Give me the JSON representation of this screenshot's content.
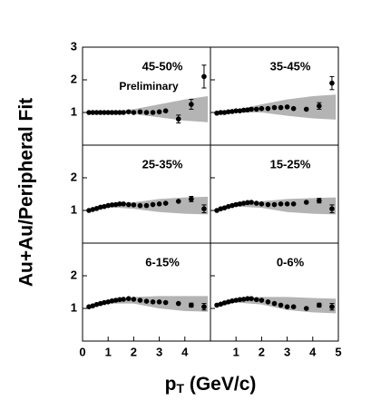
{
  "ylabel": "Au+Au/Peripheral Fit",
  "xlabel": {
    "main": "p",
    "sub": "T",
    "rest": " (GeV/c)"
  },
  "chart_data": [
    {
      "type": "scatter",
      "title": "45-50%",
      "annotation": "Preliminary",
      "xlim": [
        0,
        5
      ],
      "ylim": [
        0,
        3
      ],
      "yticks": [
        1,
        2,
        3
      ],
      "color": "#000000",
      "band_color": "#b4b4b4",
      "x": [
        0.25,
        0.4,
        0.55,
        0.7,
        0.85,
        1.0,
        1.15,
        1.3,
        1.45,
        1.6,
        1.8,
        2.0,
        2.25,
        2.5,
        2.75,
        3.0,
        3.25,
        3.75,
        4.25,
        4.75
      ],
      "values": [
        1.0,
        1.0,
        1.0,
        1.0,
        1.0,
        1.0,
        1.0,
        1.0,
        1.0,
        1.0,
        1.02,
        1.0,
        1.02,
        1.0,
        1.0,
        1.02,
        1.05,
        0.8,
        1.25,
        2.1
      ],
      "errors": [
        null,
        null,
        null,
        null,
        null,
        null,
        null,
        null,
        null,
        null,
        null,
        null,
        null,
        null,
        null,
        null,
        null,
        0.12,
        0.15,
        0.35
      ],
      "band_x": [
        0.2,
        1,
        2,
        3,
        4,
        4.9
      ],
      "band_lower": [
        0.98,
        0.98,
        0.95,
        0.85,
        0.75,
        0.7
      ],
      "band_upper": [
        1.02,
        1.02,
        1.1,
        1.25,
        1.4,
        1.5
      ]
    },
    {
      "type": "scatter",
      "title": "35-45%",
      "xlim": [
        0,
        5
      ],
      "ylim": [
        0,
        3
      ],
      "yticks": [
        1,
        2,
        3
      ],
      "color": "#000000",
      "band_color": "#b4b4b4",
      "x": [
        0.25,
        0.4,
        0.55,
        0.7,
        0.85,
        1.0,
        1.15,
        1.3,
        1.45,
        1.6,
        1.8,
        2.0,
        2.25,
        2.5,
        2.75,
        3.0,
        3.25,
        3.75,
        4.25,
        4.75
      ],
      "values": [
        0.98,
        1.0,
        1.0,
        1.02,
        1.03,
        1.05,
        1.05,
        1.07,
        1.08,
        1.1,
        1.1,
        1.12,
        1.12,
        1.15,
        1.15,
        1.17,
        1.12,
        1.1,
        1.2,
        1.9
      ],
      "errors": [
        null,
        null,
        null,
        null,
        null,
        null,
        null,
        null,
        null,
        null,
        null,
        null,
        null,
        null,
        null,
        null,
        null,
        null,
        0.1,
        0.2
      ],
      "band_x": [
        0.2,
        1,
        2,
        3,
        4,
        4.9
      ],
      "band_lower": [
        0.97,
        1.0,
        1.0,
        0.9,
        0.82,
        0.78
      ],
      "band_upper": [
        1.02,
        1.08,
        1.25,
        1.4,
        1.5,
        1.55
      ]
    },
    {
      "type": "scatter",
      "title": "25-35%",
      "xlim": [
        0,
        5
      ],
      "ylim": [
        0,
        3
      ],
      "yticks": [
        1,
        2
      ],
      "color": "#000000",
      "band_color": "#b4b4b4",
      "x": [
        0.25,
        0.4,
        0.55,
        0.7,
        0.85,
        1.0,
        1.15,
        1.3,
        1.45,
        1.6,
        1.8,
        2.0,
        2.25,
        2.5,
        2.75,
        3.0,
        3.25,
        3.75,
        4.25,
        4.75
      ],
      "values": [
        1.0,
        1.03,
        1.06,
        1.1,
        1.12,
        1.15,
        1.17,
        1.18,
        1.2,
        1.2,
        1.18,
        1.17,
        1.15,
        1.15,
        1.18,
        1.2,
        1.22,
        1.28,
        1.35,
        1.05
      ],
      "errors": [
        null,
        null,
        null,
        null,
        null,
        null,
        null,
        null,
        null,
        null,
        null,
        null,
        null,
        null,
        null,
        null,
        null,
        null,
        0.08,
        0.12
      ],
      "band_x": [
        0.2,
        1,
        2,
        3,
        4,
        4.9
      ],
      "band_lower": [
        0.97,
        1.1,
        1.05,
        0.95,
        0.9,
        0.88
      ],
      "band_upper": [
        1.03,
        1.2,
        1.25,
        1.35,
        1.4,
        1.42
      ]
    },
    {
      "type": "scatter",
      "title": "15-25%",
      "xlim": [
        0,
        5
      ],
      "ylim": [
        0,
        3
      ],
      "yticks": [
        1,
        2
      ],
      "color": "#000000",
      "band_color": "#b4b4b4",
      "x": [
        0.25,
        0.4,
        0.55,
        0.7,
        0.85,
        1.0,
        1.15,
        1.3,
        1.45,
        1.6,
        1.8,
        2.0,
        2.25,
        2.5,
        2.75,
        3.0,
        3.25,
        3.75,
        4.25,
        4.75
      ],
      "values": [
        1.0,
        1.05,
        1.08,
        1.12,
        1.15,
        1.18,
        1.2,
        1.22,
        1.24,
        1.25,
        1.22,
        1.2,
        1.18,
        1.18,
        1.2,
        1.2,
        1.2,
        1.25,
        1.3,
        1.05
      ],
      "errors": [
        null,
        null,
        null,
        null,
        null,
        null,
        null,
        null,
        null,
        null,
        null,
        null,
        null,
        null,
        null,
        null,
        null,
        null,
        0.07,
        0.12
      ],
      "band_x": [
        0.2,
        1,
        2,
        3,
        4,
        4.9
      ],
      "band_lower": [
        0.97,
        1.12,
        1.08,
        0.95,
        0.9,
        0.88
      ],
      "band_upper": [
        1.03,
        1.22,
        1.28,
        1.35,
        1.38,
        1.4
      ]
    },
    {
      "type": "scatter",
      "title": "6-15%",
      "xlim": [
        0,
        5
      ],
      "ylim": [
        0,
        3
      ],
      "yticks": [
        1,
        2
      ],
      "xticks": [
        0,
        1,
        2,
        3,
        4
      ],
      "color": "#000000",
      "band_color": "#b4b4b4",
      "x": [
        0.25,
        0.4,
        0.55,
        0.7,
        0.85,
        1.0,
        1.15,
        1.3,
        1.45,
        1.6,
        1.8,
        2.0,
        2.25,
        2.5,
        2.75,
        3.0,
        3.25,
        3.75,
        4.25,
        4.75
      ],
      "values": [
        1.05,
        1.08,
        1.12,
        1.15,
        1.18,
        1.2,
        1.23,
        1.25,
        1.27,
        1.28,
        1.3,
        1.28,
        1.25,
        1.22,
        1.2,
        1.2,
        1.18,
        1.15,
        1.1,
        1.05
      ],
      "errors": [
        null,
        null,
        null,
        null,
        null,
        null,
        null,
        null,
        null,
        null,
        null,
        null,
        null,
        null,
        null,
        null,
        null,
        null,
        0.06,
        0.1
      ],
      "band_x": [
        0.2,
        1,
        2,
        3,
        4,
        4.9
      ],
      "band_lower": [
        1.0,
        1.15,
        1.15,
        1.0,
        0.92,
        0.9
      ],
      "band_upper": [
        1.06,
        1.25,
        1.35,
        1.38,
        1.38,
        1.38
      ]
    },
    {
      "type": "scatter",
      "title": "0-6%",
      "xlim": [
        0,
        5
      ],
      "ylim": [
        0,
        3
      ],
      "yticks": [
        1,
        2
      ],
      "xticks": [
        1,
        2,
        3,
        4,
        5
      ],
      "color": "#000000",
      "band_color": "#b4b4b4",
      "x": [
        0.25,
        0.4,
        0.55,
        0.7,
        0.85,
        1.0,
        1.15,
        1.3,
        1.45,
        1.6,
        1.8,
        2.0,
        2.25,
        2.5,
        2.75,
        3.0,
        3.25,
        3.75,
        4.25,
        4.75
      ],
      "values": [
        1.1,
        1.13,
        1.17,
        1.2,
        1.23,
        1.25,
        1.27,
        1.28,
        1.3,
        1.3,
        1.27,
        1.25,
        1.2,
        1.15,
        1.1,
        1.05,
        1.05,
        1.0,
        1.1,
        1.05
      ],
      "errors": [
        null,
        null,
        null,
        null,
        null,
        null,
        null,
        null,
        null,
        null,
        null,
        null,
        null,
        null,
        null,
        null,
        null,
        null,
        0.06,
        0.1
      ],
      "band_x": [
        0.2,
        1,
        2,
        3,
        4,
        4.9
      ],
      "band_lower": [
        1.05,
        1.18,
        1.12,
        0.95,
        0.88,
        0.85
      ],
      "band_upper": [
        1.12,
        1.3,
        1.35,
        1.35,
        1.32,
        1.3
      ]
    }
  ]
}
